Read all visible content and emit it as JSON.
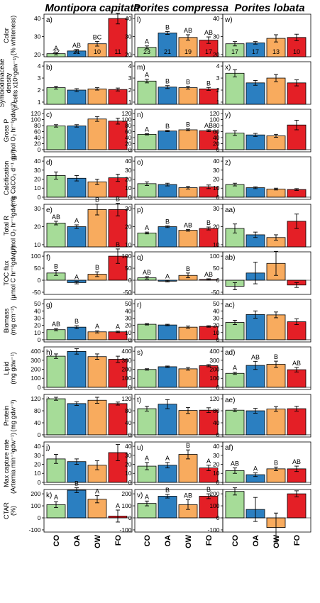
{
  "species": [
    "Montipora capitata",
    "Porites compressa",
    "Porites lobata"
  ],
  "treatments": [
    "CO",
    "OA",
    "OW",
    "FO"
  ],
  "colors": {
    "CO": "#a6dc98",
    "OA": "#2b7fc1",
    "OW": "#f8ab5e",
    "FO": "#e41f26",
    "axis": "#000000"
  },
  "chart_data": {
    "type": "bar",
    "layout": "grid of bar charts, 11 rows (response variables) by 3 columns (species)",
    "categories": [
      "CO",
      "OA",
      "OW",
      "FO"
    ],
    "rows": [
      {
        "ylabel": "Color\n(% whiteness)",
        "ticks": [
          20,
          30,
          40
        ],
        "panels": [
          {
            "tag": "a)",
            "values": [
              20.5,
              22,
              26,
              40
            ],
            "errors": [
              0.7,
              0.8,
              1.3,
              3
            ],
            "letters": [
              "A",
              "AB",
              "BC",
              "C"
            ],
            "counts": [
              "22",
              "21",
              "10",
              "11"
            ]
          },
          {
            "tag": "l)",
            "values": [
              24,
              32,
              29.5,
              28
            ],
            "errors": [
              0.8,
              0.8,
              1.5,
              1.8
            ],
            "letters": [
              "A",
              "B",
              "AB",
              "AB"
            ],
            "counts": [
              "23",
              "21",
              "19",
              "17"
            ]
          },
          {
            "tag": "w)",
            "values": [
              26,
              26.5,
              29,
              29.5
            ],
            "errors": [
              1.2,
              0.7,
              2,
              1.8
            ],
            "letters": [],
            "counts": [
              "17",
              "17",
              "13",
              "10"
            ]
          }
        ]
      },
      {
        "ylabel": "Symbiodiniaceae\ndensity\n(# cells x10⁶gdw⁻¹)",
        "ticks": [
          1,
          2,
          3,
          4
        ],
        "panels": [
          {
            "tag": "b)",
            "values": [
              2.2,
              2.0,
              2.1,
              2.05
            ],
            "errors": [
              0.12,
              0.12,
              0.1,
              0.12
            ],
            "letters": []
          },
          {
            "tag": "m)",
            "values": [
              2.75,
              2.25,
              2.2,
              2.1
            ],
            "errors": [
              0.15,
              0.12,
              0.12,
              0.12
            ],
            "letters": [
              "A",
              "B",
              "B",
              "B"
            ]
          },
          {
            "tag": "x)",
            "values": [
              3.4,
              2.6,
              3.0,
              2.6
            ],
            "errors": [
              0.3,
              0.2,
              0.3,
              0.25
            ],
            "letters": []
          }
        ]
      },
      {
        "ylabel": "Gross P\n(μmol O₂ hr⁻¹gdw⁻¹)",
        "ticks": [
          0,
          20,
          40,
          60,
          80,
          100,
          120
        ],
        "panels": [
          {
            "tag": "c)",
            "values": [
              79,
              79,
              102,
              95
            ],
            "errors": [
              4,
              4,
              8,
              10
            ],
            "letters": []
          },
          {
            "tag": "n)",
            "values": [
              51,
              62,
              66,
              63
            ],
            "errors": [
              2,
              2,
              3,
              3
            ],
            "letters": [
              "A",
              "B",
              "B",
              "AB"
            ]
          },
          {
            "tag": "y)",
            "values": [
              55,
              49,
              46,
              82
            ],
            "errors": [
              8,
              5,
              5,
              16
            ],
            "letters": []
          }
        ]
      },
      {
        "ylabel": "Calcification\n(mg CaCO₃ d⁻¹ g⁻¹)",
        "ticks": [
          0,
          10,
          20,
          30,
          40
        ],
        "panels": [
          {
            "tag": "d)",
            "values": [
              24,
              21,
              17,
              21.5
            ],
            "errors": [
              4,
              3,
              3,
              4
            ],
            "letters": []
          },
          {
            "tag": "o)",
            "values": [
              15,
              14,
              10.5,
              11.5
            ],
            "errors": [
              2,
              1.5,
              1.5,
              2
            ],
            "letters": []
          },
          {
            "tag": "z)",
            "values": [
              14,
              10.5,
              9,
              8.5
            ],
            "errors": [
              1.5,
              1,
              1,
              1
            ],
            "letters": []
          }
        ]
      },
      {
        "ylabel": "Total R\n(μmol O₂ hr⁻¹gdw⁻¹)",
        "ticks": [
          10,
          20,
          30
        ],
        "panels": [
          {
            "tag": "e)",
            "values": [
              22,
              20,
              29.5,
              29.5
            ],
            "errors": [
              1,
              1,
              3,
              3.5
            ],
            "letters": [
              "AB",
              "A",
              "B",
              "B"
            ]
          },
          {
            "tag": "p)",
            "values": [
              16.5,
              20,
              18,
              19
            ],
            "errors": [
              0.5,
              0.5,
              0.5,
              0.8
            ],
            "letters": [
              "A",
              "B",
              "AB",
              "B"
            ]
          },
          {
            "tag": "aa)",
            "values": [
              19,
              15.5,
              14,
              23
            ],
            "errors": [
              2.5,
              1.5,
              1.5,
              4
            ],
            "letters": []
          }
        ]
      },
      {
        "ylabel": "TOC flux\n(μmol C hr⁻¹gdw⁻¹)",
        "ticks": [
          -50,
          0,
          50,
          100
        ],
        "panels": [
          {
            "tag": "f)",
            "values": [
              30,
              -10,
              25,
              100
            ],
            "errors": [
              10,
              5,
              10,
              30
            ],
            "letters": [
              "B",
              "A",
              "B",
              "B"
            ]
          },
          {
            "tag": "q)",
            "values": [
              10,
              -4,
              20,
              3
            ],
            "errors": [
              5,
              3,
              10,
              3
            ],
            "letters": [
              "AB",
              "A",
              "B",
              "AB"
            ]
          },
          {
            "tag": "ab)",
            "values": [
              -25,
              30,
              70,
              -20
            ],
            "errors": [
              15,
              45,
              50,
              10
            ],
            "letters": []
          }
        ]
      },
      {
        "ylabel": "Biomass\n(mg cm⁻²)",
        "ticks": [
          0,
          10,
          20,
          30,
          40,
          50
        ],
        "panels": [
          {
            "tag": "g)",
            "values": [
              14,
              17.5,
              11,
              11
            ],
            "errors": [
              1.5,
              2,
              1.5,
              1
            ],
            "letters": [
              "AB",
              "B",
              "A",
              "A"
            ]
          },
          {
            "tag": "r)",
            "values": [
              21.5,
              20.5,
              17.5,
              18.5
            ],
            "errors": [
              1,
              1,
              1.5,
              1
            ],
            "letters": []
          },
          {
            "tag": "ac)",
            "values": [
              24,
              35,
              34.5,
              25
            ],
            "errors": [
              3,
              5,
              4,
              4
            ],
            "letters": []
          }
        ]
      },
      {
        "ylabel": "Lipid\n(mg gdw⁻¹)",
        "ticks": [
          0,
          100,
          200,
          300,
          400
        ],
        "panels": [
          {
            "tag": "h)",
            "values": [
              345,
              398,
              340,
              310
            ],
            "errors": [
              25,
              30,
              30,
              35
            ],
            "letters": []
          },
          {
            "tag": "s)",
            "values": [
              198,
              228,
              205,
              240
            ],
            "errors": [
              8,
              8,
              15,
              12
            ],
            "letters": []
          },
          {
            "tag": "ad)",
            "values": [
              155,
              243,
              255,
              195
            ],
            "errors": [
              12,
              45,
              35,
              25
            ],
            "letters": [
              "A",
              "AB",
              "B",
              "AB"
            ]
          }
        ]
      },
      {
        "ylabel": "Protein\n(mg gdw⁻¹)",
        "ticks": [
          0,
          40,
          80,
          120
        ],
        "panels": [
          {
            "tag": "i)",
            "values": [
              120,
              104,
              115,
              104
            ],
            "errors": [
              5,
              6,
              10,
              5
            ],
            "letters": []
          },
          {
            "tag": "t)",
            "values": [
              87,
              102,
              81,
              82
            ],
            "errors": [
              8,
              15,
              10,
              8
            ],
            "letters": []
          },
          {
            "tag": "ae)",
            "values": [
              82,
              80,
              86,
              87
            ],
            "errors": [
              5,
              8,
              8,
              8
            ],
            "letters": []
          }
        ]
      },
      {
        "ylabel": "Max capture rate\n(Artemia min⁻¹gdw⁻¹)",
        "ticks": [
          0,
          10,
          20,
          30,
          40
        ],
        "panels": [
          {
            "tag": "j)",
            "values": [
              26,
              23,
              19,
              33
            ],
            "errors": [
              5,
              3,
              5,
              9
            ],
            "letters": []
          },
          {
            "tag": "u)",
            "values": [
              18,
              19,
              31,
              16
            ],
            "errors": [
              4,
              3,
              5,
              3
            ],
            "letters": [
              "A",
              "A",
              "B",
              "A"
            ]
          },
          {
            "tag": "af)",
            "values": [
              13,
              8.5,
              15,
              15
            ],
            "errors": [
              3,
              2,
              2,
              3
            ],
            "letters": [
              "AB",
              "A",
              "B",
              "AB"
            ]
          }
        ]
      },
      {
        "ylabel": "CTAR\n(%)",
        "ticks": [
          -100,
          0,
          100,
          200
        ],
        "panels": [
          {
            "tag": "k)",
            "values": [
              110,
              230,
              155,
              15
            ],
            "errors": [
              25,
              20,
              30,
              50
            ],
            "letters": [
              "A",
              "B",
              "A",
              "A"
            ]
          },
          {
            "tag": "v)",
            "values": [
              120,
              180,
              110,
              180
            ],
            "errors": [
              20,
              15,
              40,
              20
            ],
            "letters": [
              "A",
              "B",
              "AB",
              "B"
            ]
          },
          {
            "tag": "ag)",
            "values": [
              220,
              70,
              -80,
              200
            ],
            "errors": [
              30,
              100,
              120,
              25
            ],
            "letters": []
          }
        ]
      }
    ]
  }
}
